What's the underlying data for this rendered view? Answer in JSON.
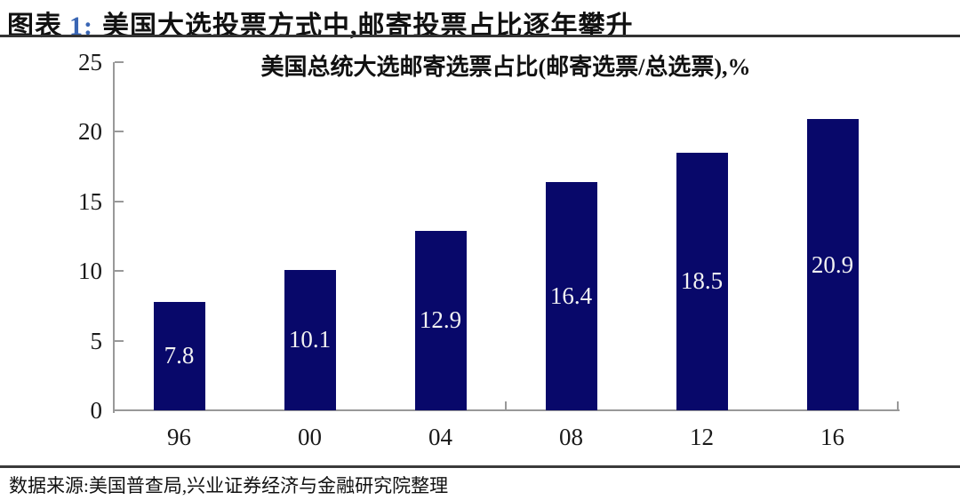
{
  "header": {
    "figure_word": "图表",
    "figure_number": "1:",
    "number_color": "#3a66b4",
    "title": "美国大选投票方式中,邮寄投票占比逐年攀升"
  },
  "chart_data": {
    "type": "bar",
    "title": "美国总统大选邮寄选票占比(邮寄选票/总选票),%",
    "categories": [
      "96",
      "00",
      "04",
      "08",
      "12",
      "16"
    ],
    "values": [
      7.8,
      10.1,
      12.9,
      16.4,
      18.5,
      20.9
    ],
    "xlabel": "",
    "ylabel": "",
    "ylim": [
      0,
      25
    ],
    "yticks": [
      0,
      5,
      10,
      15,
      20,
      25
    ],
    "grid": false,
    "legend_position": "none",
    "bar_color": "#08086a",
    "label_color": "#f2f2f2",
    "axis_color": "#999999"
  },
  "footer": {
    "source": "数据来源:美国普查局,兴业证券经济与金融研究院整理"
  }
}
